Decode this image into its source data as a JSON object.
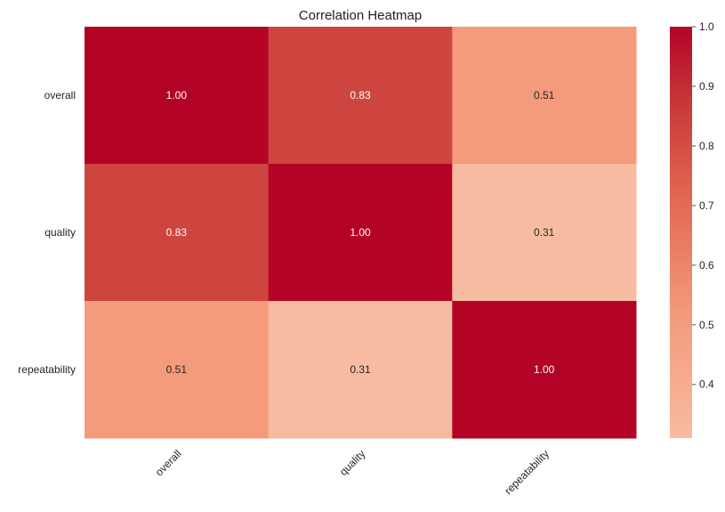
{
  "chart_data": {
    "type": "heatmap",
    "title": "Correlation Heatmap",
    "xlabel": "",
    "ylabel": "",
    "x_categories": [
      "overall",
      "quality",
      "repeatability"
    ],
    "y_categories": [
      "overall",
      "quality",
      "repeatability"
    ],
    "values": [
      [
        1.0,
        0.83,
        0.51
      ],
      [
        0.83,
        1.0,
        0.31
      ],
      [
        0.51,
        0.31,
        1.0
      ]
    ],
    "cell_labels": [
      [
        "1.00",
        "0.83",
        "0.51"
      ],
      [
        "0.83",
        "1.00",
        "0.31"
      ],
      [
        "0.51",
        "0.31",
        "1.00"
      ]
    ],
    "colormap": "coolwarm-upper",
    "colorbar": {
      "vmin": 0.31,
      "vmax": 1.0,
      "ticks": [
        0.4,
        0.5,
        0.6,
        0.7,
        0.8,
        0.9,
        1.0
      ],
      "tick_labels": [
        "0.4",
        "0.5",
        "0.6",
        "0.7",
        "0.8",
        "0.9",
        "1.0"
      ]
    },
    "colors": {
      "low": "#f7bba1",
      "mid": "#f49a7b",
      "high": "#b40426"
    },
    "grid": false,
    "x_tick_rotation": "45-degrees"
  }
}
